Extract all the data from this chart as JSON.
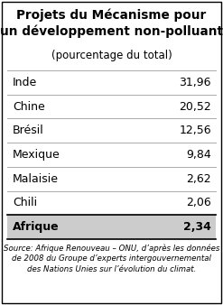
{
  "title_line1": "Projets du Mécanisme pour",
  "title_line2": "un développement non-polluant",
  "subtitle": "(pourcentage du total)",
  "rows": [
    {
      "label": "Inde",
      "value": "31,96",
      "bold": false
    },
    {
      "label": "Chine",
      "value": "20,52",
      "bold": false
    },
    {
      "label": "Brésil",
      "value": "12,56",
      "bold": false
    },
    {
      "label": "Mexique",
      "value": "9,84",
      "bold": false
    },
    {
      "label": "Malaisie",
      "value": "2,62",
      "bold": false
    },
    {
      "label": "Chili",
      "value": "2,06",
      "bold": false
    },
    {
      "label": "Afrique",
      "value": "2,34",
      "bold": true
    }
  ],
  "source_text": "Source: Afrique Renouveau – ONU, d’après les données\nde 2008 du Groupe d’experts intergouvernemental\ndes Nations Unies sur l’évolution du climat.",
  "bg_color": "#ffffff",
  "border_color": "#000000",
  "separator_color": "#aaaaaa",
  "last_row_bg": "#cccccc",
  "text_color": "#000000",
  "title_fontsize": 9.8,
  "subtitle_fontsize": 8.5,
  "row_fontsize": 9.0,
  "source_fontsize": 6.2
}
